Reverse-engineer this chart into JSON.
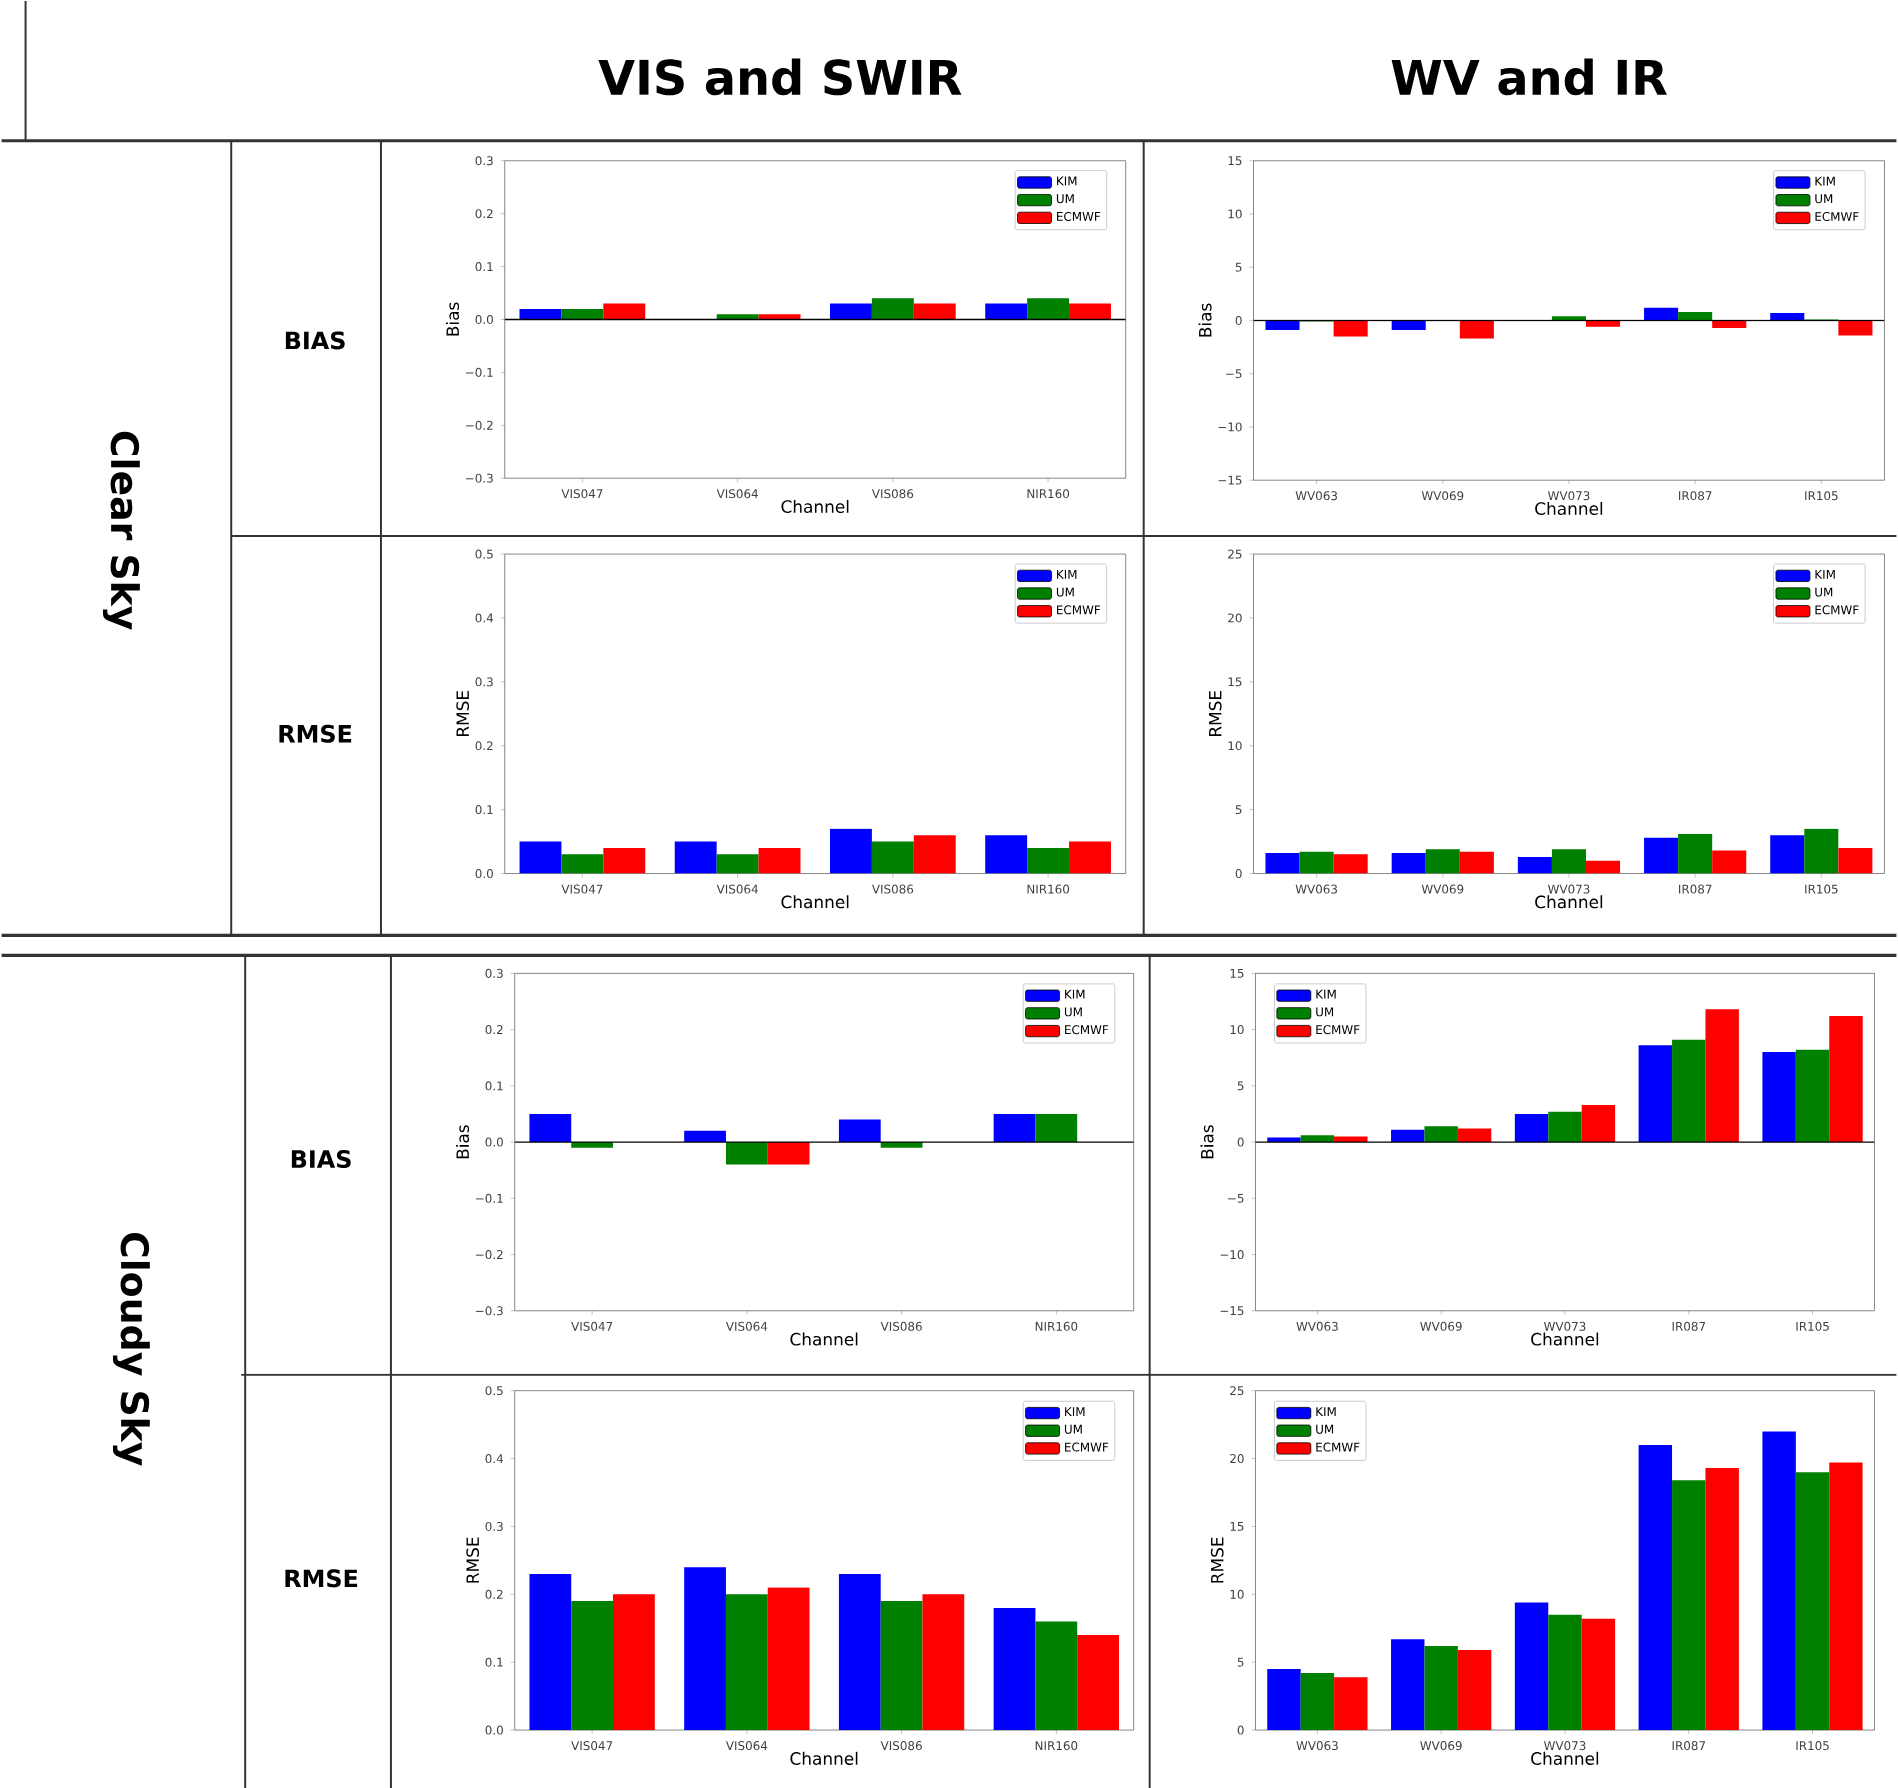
{
  "chart_data": [
    {
      "type": "bar",
      "xlabel": "Channel",
      "ylabel": "Bias",
      "categories": [
        "VIS047",
        "VIS064",
        "VIS086",
        "NIR160"
      ],
      "series": [
        {
          "name": "KIM",
          "color": "#0000ff",
          "values": [
            0.02,
            0,
            0.03,
            0.03
          ]
        },
        {
          "name": "UM",
          "color": "#008000",
          "values": [
            0.02,
            0.01,
            0.04,
            0.04
          ]
        },
        {
          "name": "ECMWF",
          "color": "#ff0000",
          "values": [
            0.03,
            0.01,
            0.03,
            0.03
          ]
        }
      ],
      "ylim": [
        -0.3,
        0.3
      ],
      "yticks": [
        {
          "value": -0.3,
          "label": "−0.3"
        },
        {
          "value": -0.2,
          "label": "−0.2"
        },
        {
          "value": -0.1,
          "label": "−0.1"
        },
        {
          "value": 0,
          "label": "0.0"
        },
        {
          "value": 0.1,
          "label": "0.1"
        },
        {
          "value": 0.2,
          "label": "0.2"
        },
        {
          "value": 0.3,
          "label": "0.3"
        }
      ],
      "ref_lines": [
        {
          "axis": "y",
          "value": 0
        }
      ],
      "legend": "top right"
    },
    {
      "type": "bar",
      "xlabel": "Channel",
      "ylabel": "Bias",
      "categories": [
        "WV063",
        "WV069",
        "WV073",
        "IR087",
        "IR105"
      ],
      "series": [
        {
          "name": "KIM",
          "color": "#0000ff",
          "values": [
            -0.9,
            -0.9,
            0,
            1.2,
            0.7
          ]
        },
        {
          "name": "UM",
          "color": "#008000",
          "values": [
            -0.1,
            0,
            0.4,
            0.8,
            0.1
          ]
        },
        {
          "name": "ECMWF",
          "color": "#ff0000",
          "values": [
            -1.5,
            -1.7,
            -0.6,
            -0.7,
            -1.4
          ]
        }
      ],
      "ylim": [
        -15,
        15
      ],
      "yticks": [
        {
          "value": -15,
          "label": "−15"
        },
        {
          "value": -10,
          "label": "−10"
        },
        {
          "value": -5,
          "label": "−5"
        },
        0,
        5,
        10,
        15
      ],
      "ref_lines": [
        {
          "axis": "y",
          "value": 0
        }
      ],
      "legend": "top right"
    },
    {
      "type": "bar",
      "xlabel": "Channel",
      "ylabel": "RMSE",
      "categories": [
        "VIS047",
        "VIS064",
        "VIS086",
        "NIR160"
      ],
      "series": [
        {
          "name": "KIM",
          "color": "#0000ff",
          "values": [
            0.05,
            0.05,
            0.07,
            0.06
          ]
        },
        {
          "name": "UM",
          "color": "#008000",
          "values": [
            0.03,
            0.03,
            0.05,
            0.04
          ]
        },
        {
          "name": "ECMWF",
          "color": "#ff0000",
          "values": [
            0.04,
            0.04,
            0.06,
            0.05
          ]
        }
      ],
      "ylim": [
        0,
        0.5
      ],
      "yticks": [
        {
          "value": 0,
          "label": "0.0"
        },
        0.1,
        0.2,
        0.3,
        0.4,
        0.5
      ],
      "legend": "top right"
    },
    {
      "type": "bar",
      "xlabel": "Channel",
      "ylabel": "RMSE",
      "categories": [
        "WV063",
        "WV069",
        "WV073",
        "IR087",
        "IR105"
      ],
      "series": [
        {
          "name": "KIM",
          "color": "#0000ff",
          "values": [
            1.6,
            1.6,
            1.3,
            2.8,
            3.0
          ]
        },
        {
          "name": "UM",
          "color": "#008000",
          "values": [
            1.7,
            1.9,
            1.9,
            3.1,
            3.5
          ]
        },
        {
          "name": "ECMWF",
          "color": "#ff0000",
          "values": [
            1.5,
            1.7,
            1.0,
            1.8,
            2.0
          ]
        }
      ],
      "ylim": [
        0,
        25
      ],
      "yticks": [
        0,
        5,
        10,
        15,
        20,
        25
      ],
      "legend": "top right"
    },
    {
      "type": "bar",
      "xlabel": "Channel",
      "ylabel": "Bias",
      "categories": [
        "VIS047",
        "VIS064",
        "VIS086",
        "NIR160"
      ],
      "series": [
        {
          "name": "KIM",
          "color": "#0000ff",
          "values": [
            0.05,
            0.02,
            0.04,
            0.05
          ]
        },
        {
          "name": "UM",
          "color": "#008000",
          "values": [
            -0.01,
            -0.04,
            -0.01,
            0.05
          ]
        },
        {
          "name": "ECMWF",
          "color": "#ff0000",
          "values": [
            0,
            -0.04,
            0,
            0
          ]
        }
      ],
      "ylim": [
        -0.3,
        0.3
      ],
      "yticks": [
        {
          "value": -0.3,
          "label": "−0.3"
        },
        {
          "value": -0.2,
          "label": "−0.2"
        },
        {
          "value": -0.1,
          "label": "−0.1"
        },
        {
          "value": 0,
          "label": "0.0"
        },
        {
          "value": 0.1,
          "label": "0.1"
        },
        {
          "value": 0.2,
          "label": "0.2"
        },
        {
          "value": 0.3,
          "label": "0.3"
        }
      ],
      "ref_lines": [
        {
          "axis": "y",
          "value": 0
        }
      ],
      "legend": "top right"
    },
    {
      "type": "bar",
      "xlabel": "Channel",
      "ylabel": "Bias",
      "categories": [
        "WV063",
        "WV069",
        "WV073",
        "IR087",
        "IR105"
      ],
      "series": [
        {
          "name": "KIM",
          "color": "#0000ff",
          "values": [
            0.4,
            1.1,
            2.5,
            8.6,
            8.0
          ]
        },
        {
          "name": "UM",
          "color": "#008000",
          "values": [
            0.6,
            1.4,
            2.7,
            9.1,
            8.2
          ]
        },
        {
          "name": "ECMWF",
          "color": "#ff0000",
          "values": [
            0.5,
            1.2,
            3.3,
            11.8,
            11.2
          ]
        }
      ],
      "ylim": [
        -15,
        15
      ],
      "yticks": [
        {
          "value": -15,
          "label": "−15"
        },
        {
          "value": -10,
          "label": "−10"
        },
        {
          "value": -5,
          "label": "−5"
        },
        0,
        5,
        10,
        15
      ],
      "ref_lines": [
        {
          "axis": "y",
          "value": 0
        }
      ],
      "legend": "top left"
    },
    {
      "type": "bar",
      "xlabel": "Channel",
      "ylabel": "RMSE",
      "categories": [
        "VIS047",
        "VIS064",
        "VIS086",
        "NIR160"
      ],
      "series": [
        {
          "name": "KIM",
          "color": "#0000ff",
          "values": [
            0.23,
            0.24,
            0.23,
            0.18
          ]
        },
        {
          "name": "UM",
          "color": "#008000",
          "values": [
            0.19,
            0.2,
            0.19,
            0.16
          ]
        },
        {
          "name": "ECMWF",
          "color": "#ff0000",
          "values": [
            0.2,
            0.21,
            0.2,
            0.14
          ]
        }
      ],
      "ylim": [
        0,
        0.5
      ],
      "yticks": [
        {
          "value": 0,
          "label": "0.0"
        },
        0.1,
        0.2,
        0.3,
        0.4,
        0.5
      ],
      "legend": "top right"
    },
    {
      "type": "bar",
      "xlabel": "Channel",
      "ylabel": "RMSE",
      "categories": [
        "WV063",
        "WV069",
        "WV073",
        "IR087",
        "IR105"
      ],
      "series": [
        {
          "name": "KIM",
          "color": "#0000ff",
          "values": [
            4.5,
            6.7,
            9.4,
            21.0,
            22.0
          ]
        },
        {
          "name": "UM",
          "color": "#008000",
          "values": [
            4.2,
            6.2,
            8.5,
            18.4,
            19.0
          ]
        },
        {
          "name": "ECMWF",
          "color": "#ff0000",
          "values": [
            3.9,
            5.9,
            8.2,
            19.3,
            19.7
          ]
        }
      ],
      "ylim": [
        0,
        25
      ],
      "yticks": [
        0,
        5,
        10,
        15,
        20,
        25
      ],
      "legend": "top left"
    },
    {
      "type": "other",
      "annotations": [
        "VIS and SWIR",
        "WV and IR",
        "Clear Sky",
        "Cloudy Sky",
        "BIAS",
        "RMSE",
        "BIAS",
        "RMSE"
      ]
    }
  ]
}
